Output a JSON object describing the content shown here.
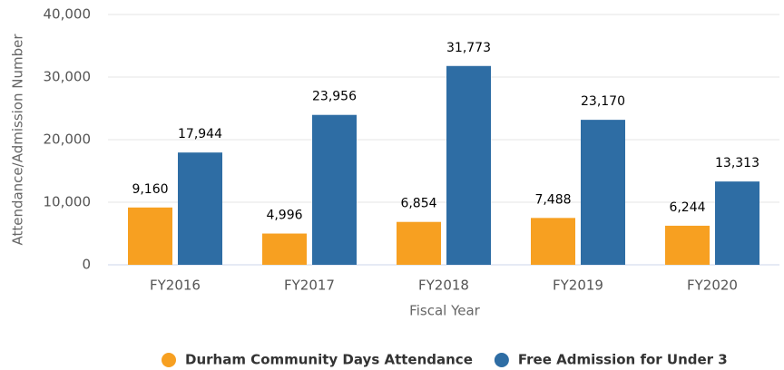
{
  "chart_data": {
    "type": "bar",
    "categories": [
      "FY2016",
      "FY2017",
      "FY2018",
      "FY2019",
      "FY2020"
    ],
    "series": [
      {
        "name": "Durham Community Days Attendance",
        "color": "#f7a021",
        "values": [
          9160,
          4996,
          6854,
          7488,
          6244
        ],
        "value_labels": [
          "9,160",
          "4,996",
          "6,854",
          "7,488",
          "6,244"
        ]
      },
      {
        "name": "Free Admission for Under 3",
        "color": "#2e6da4",
        "values": [
          17944,
          23956,
          31773,
          23170,
          13313
        ],
        "value_labels": [
          "17,944",
          "23,956",
          "31,773",
          "23,170",
          "13,313"
        ]
      }
    ],
    "xlabel": "Fiscal Year",
    "ylabel": "Attendance/Admission Number",
    "ylim": [
      0,
      40000
    ],
    "yticks": [
      0,
      {
        "value": 10000,
        "label": "10,000"
      },
      {
        "value": 20000,
        "label": "20,000"
      },
      {
        "value": 30000,
        "label": "30,000"
      },
      {
        "value": 40000,
        "label": "40,000"
      }
    ],
    "grid": true,
    "legend": "bottom"
  }
}
